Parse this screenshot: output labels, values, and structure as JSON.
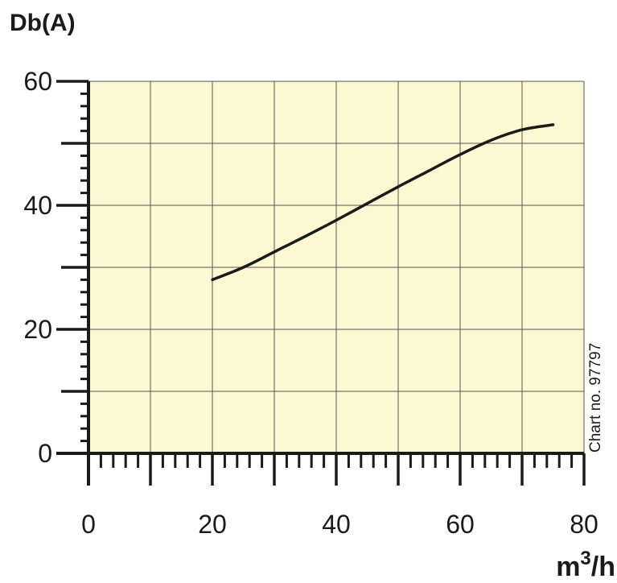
{
  "chart_data": {
    "type": "line",
    "ylabel": "Db(A)",
    "xlabel_base": "m",
    "xlabel_sup": "3",
    "xlabel_tail": "/h",
    "note": "Chart no. 97797",
    "xlim": [
      0,
      80
    ],
    "ylim": [
      0,
      60
    ],
    "x_ticks": [
      "0",
      "20",
      "40",
      "60",
      "80"
    ],
    "y_ticks": [
      "0",
      "20",
      "40",
      "60"
    ],
    "grid": true,
    "colors": {
      "plot_bg": "#fdf8d2",
      "line": "#1a1a1a",
      "grid": "#555555"
    },
    "series": [
      {
        "x": [
          20,
          25,
          30,
          35,
          40,
          45,
          50,
          55,
          60,
          65,
          70,
          75
        ],
        "y": [
          28,
          30,
          32.5,
          35,
          37.6,
          40.3,
          43,
          45.6,
          48.2,
          50.5,
          52.2,
          53
        ]
      }
    ]
  }
}
